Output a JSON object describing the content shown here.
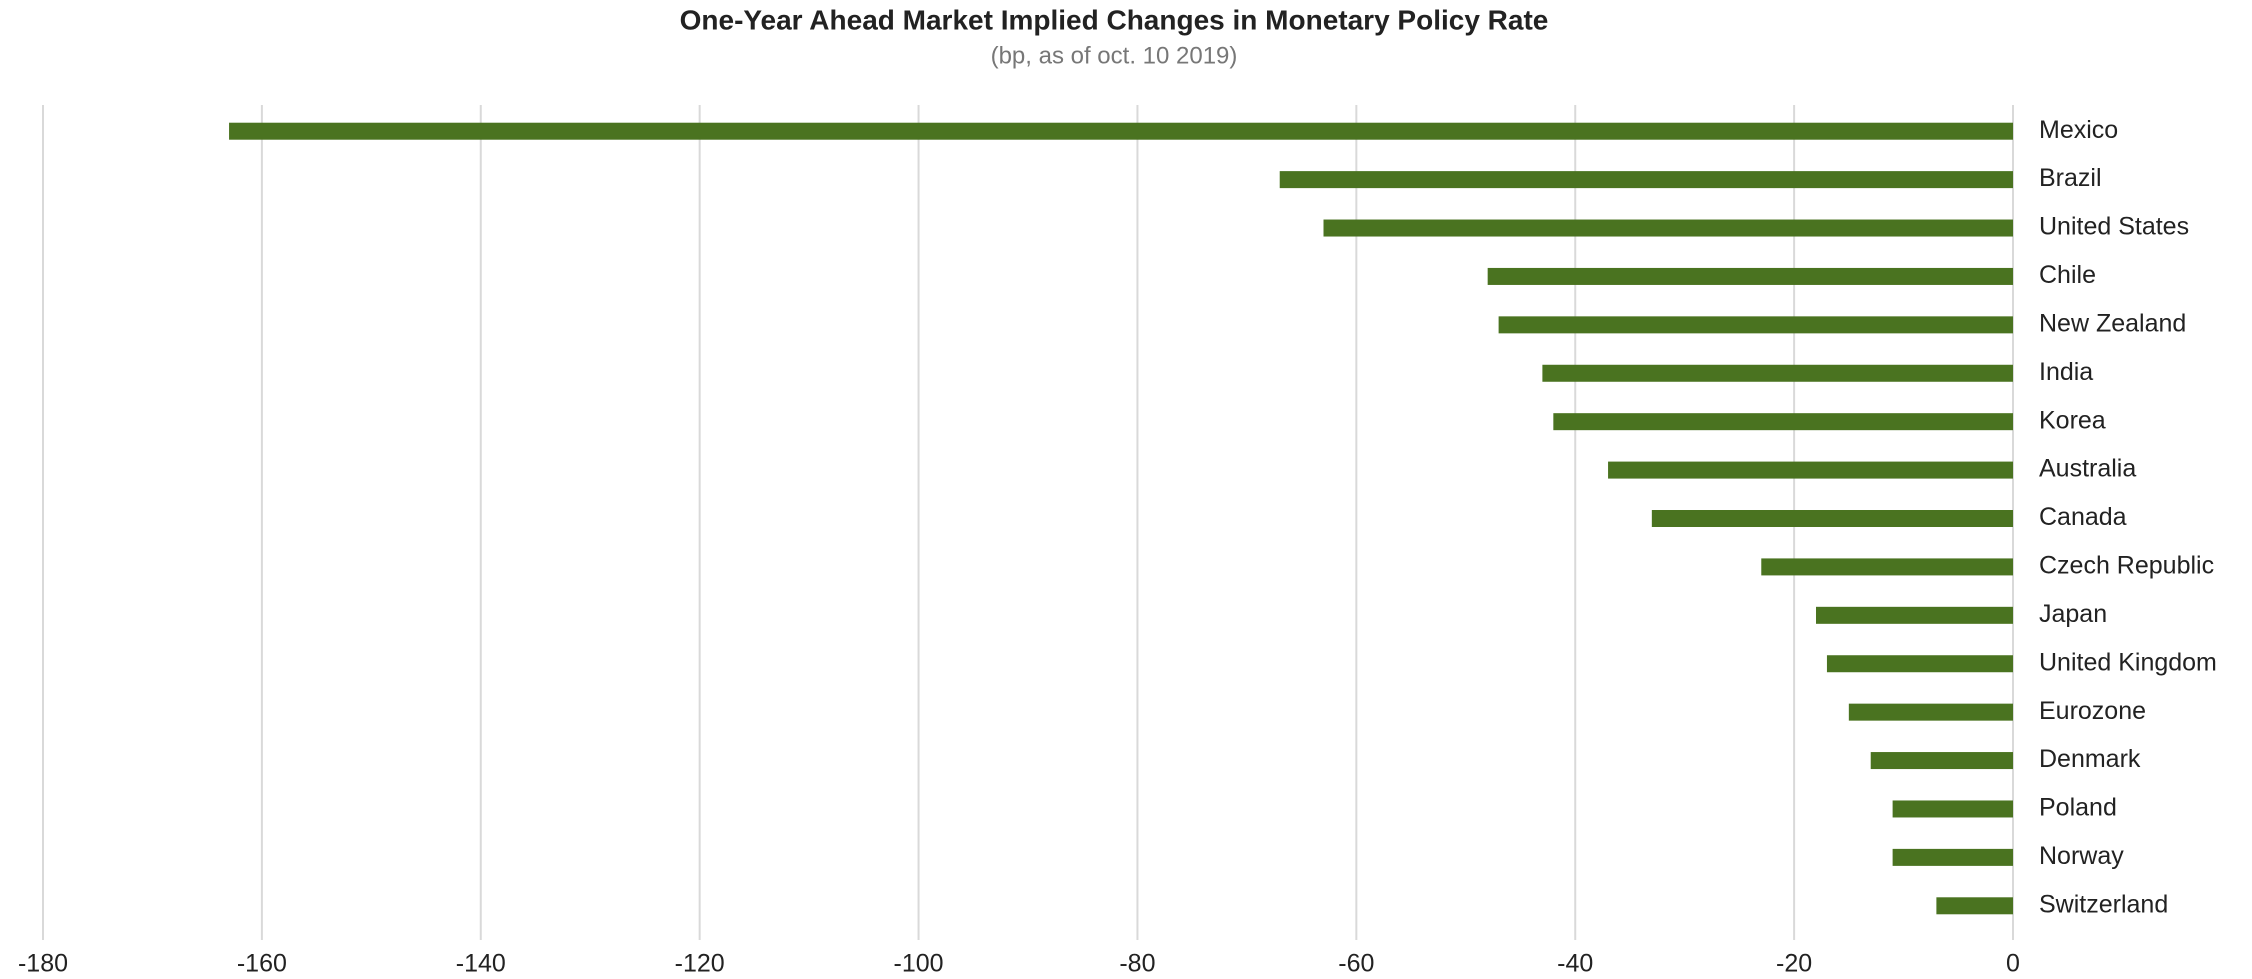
{
  "chart_data": {
    "type": "bar",
    "orientation": "horizontal",
    "title": "One-Year Ahead Market Implied Changes in Monetary Policy Rate",
    "subtitle": "(bp, as of oct. 10 2019)",
    "categories": [
      "Mexico",
      "Brazil",
      "United States",
      "Chile",
      "New Zealand",
      "India",
      "Korea",
      "Australia",
      "Canada",
      "Czech Republic",
      "Japan",
      "United Kingdom",
      "Eurozone",
      "Denmark",
      "Poland",
      "Norway",
      "Switzerland"
    ],
    "values": [
      -163,
      -67,
      -63,
      -48,
      -47,
      -43,
      -42,
      -37,
      -33,
      -23,
      -18,
      -17,
      -15,
      -13,
      -11,
      -11,
      -7
    ],
    "color": "#4a7320",
    "xlim": [
      -180,
      0
    ],
    "xticks": [
      -180,
      -160,
      -140,
      -120,
      -100,
      -80,
      -60,
      -40,
      -20,
      0
    ],
    "grid": true
  }
}
